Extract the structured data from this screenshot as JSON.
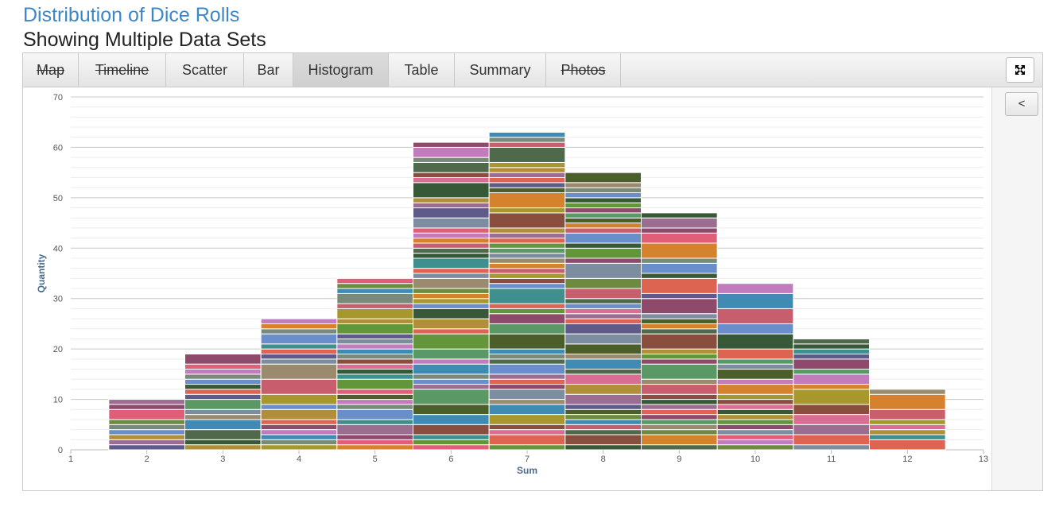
{
  "header": {
    "title": "Distribution of Dice Rolls",
    "subtitle": "Showing Multiple Data Sets"
  },
  "tabs": [
    {
      "label": "Map",
      "disabled": true,
      "active": false
    },
    {
      "label": "Timeline",
      "disabled": true,
      "active": false
    },
    {
      "label": "Scatter",
      "disabled": false,
      "active": false
    },
    {
      "label": "Bar",
      "disabled": false,
      "active": false
    },
    {
      "label": "Histogram",
      "disabled": false,
      "active": true
    },
    {
      "label": "Table",
      "disabled": false,
      "active": false
    },
    {
      "label": "Summary",
      "disabled": false,
      "active": false
    },
    {
      "label": "Photos",
      "disabled": true,
      "active": false
    }
  ],
  "controls": {
    "fullscreen_icon": "expand-arrows-icon",
    "collapse_label": "<"
  },
  "chart_data": {
    "type": "bar",
    "stacked": true,
    "xlabel": "Sum",
    "ylabel": "Quantity",
    "xlim": [
      1,
      13
    ],
    "ylim": [
      0,
      70
    ],
    "xticks": [
      1,
      2,
      3,
      4,
      5,
      6,
      7,
      8,
      9,
      10,
      11,
      12,
      13
    ],
    "yticks": [
      0,
      10,
      20,
      30,
      40,
      50,
      60,
      70
    ],
    "grid": true,
    "bins": [
      2,
      3,
      4,
      5,
      6,
      7,
      8,
      9,
      10,
      11,
      12
    ],
    "totals": [
      10,
      19,
      26,
      34,
      61,
      63,
      55,
      47,
      33,
      22,
      12
    ],
    "palette": [
      "#5e5a8a",
      "#63953a",
      "#dd6450",
      "#9b6e91",
      "#3e8f8e",
      "#b08f3a",
      "#385937",
      "#d96d94",
      "#6a8ec9",
      "#8a4e3e",
      "#a7982e",
      "#4e6a4a",
      "#c85d6e",
      "#7a8a7a",
      "#3f8bb3",
      "#d4822e",
      "#6e8a3e",
      "#9a8a6e",
      "#c27bbd",
      "#4c5f2a",
      "#e05e78",
      "#7d8da0",
      "#5a9966",
      "#8e4a6a"
    ]
  }
}
